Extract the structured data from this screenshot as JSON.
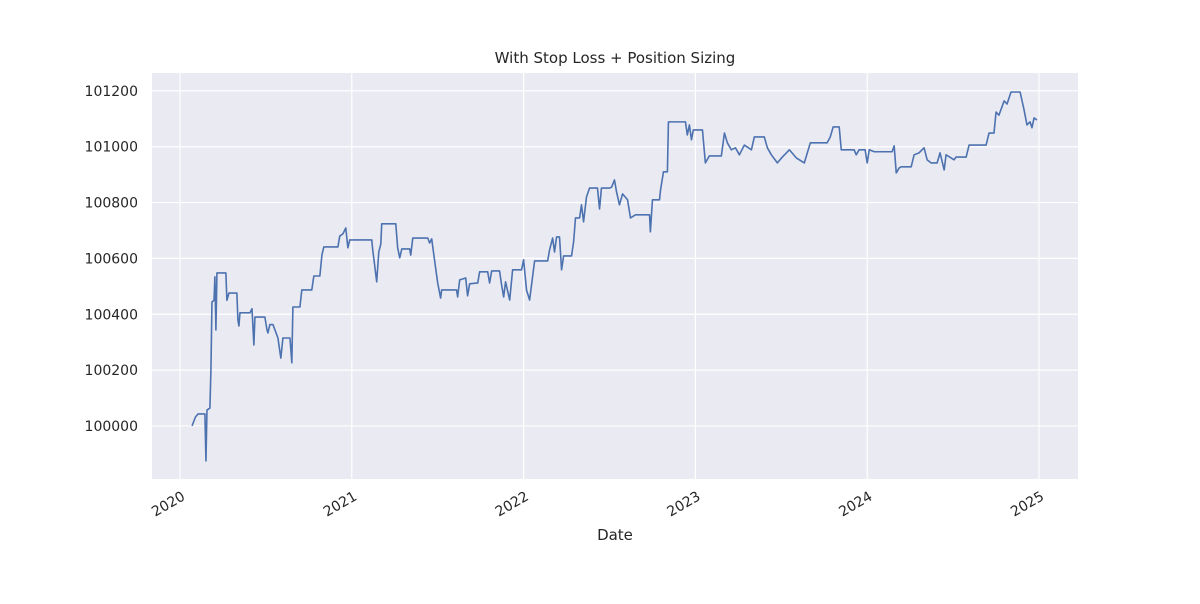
{
  "chart_data": {
    "type": "line",
    "title": "With Stop Loss + Position Sizing",
    "x_label": "Date",
    "xlim": [
      2019.837,
      2025.227
    ],
    "xticks": [
      2020,
      2021,
      2022,
      2023,
      2024,
      2025
    ],
    "ylim": [
      99810,
      101264
    ],
    "yticks": [
      100000,
      100200,
      100400,
      100600,
      100800,
      101000,
      101200
    ],
    "grid": true,
    "series": [
      {
        "color": "#4c72b0",
        "x": [
          2020.07,
          2020.09,
          2020.105,
          2020.145,
          2020.151,
          2020.157,
          2020.174,
          2020.18,
          2020.186,
          2020.198,
          2020.203,
          2020.209,
          2020.215,
          2020.267,
          2020.273,
          2020.285,
          2020.331,
          2020.337,
          2020.343,
          2020.349,
          2020.407,
          2020.419,
          2020.43,
          2020.436,
          2020.494,
          2020.506,
          2020.512,
          2020.523,
          2020.541,
          2020.57,
          2020.587,
          2020.599,
          2020.64,
          2020.651,
          2020.657,
          2020.698,
          2020.709,
          2020.767,
          2020.779,
          2020.814,
          2020.826,
          2020.837,
          2020.919,
          2020.93,
          2020.948,
          2020.965,
          2020.977,
          2020.988,
          2021.116,
          2021.122,
          2021.145,
          2021.157,
          2021.169,
          2021.174,
          2021.256,
          2021.267,
          2021.279,
          2021.291,
          2021.337,
          2021.343,
          2021.355,
          2021.442,
          2021.453,
          2021.465,
          2021.483,
          2021.5,
          2021.517,
          2021.523,
          2021.61,
          2021.616,
          2021.628,
          2021.663,
          2021.674,
          2021.686,
          2021.733,
          2021.744,
          2021.791,
          2021.802,
          2021.814,
          2021.86,
          2021.872,
          2021.884,
          2021.895,
          2021.919,
          2021.936,
          2021.988,
          2022.0,
          2022.017,
          2022.035,
          2022.064,
          2022.14,
          2022.151,
          2022.169,
          2022.18,
          2022.192,
          2022.209,
          2022.221,
          2022.233,
          2022.279,
          2022.291,
          2022.302,
          2022.326,
          2022.337,
          2022.349,
          2022.366,
          2022.384,
          2022.43,
          2022.442,
          2022.453,
          2022.5,
          2022.512,
          2022.529,
          2022.541,
          2022.558,
          2022.576,
          2022.605,
          2022.622,
          2022.651,
          2022.733,
          2022.738,
          2022.75,
          2022.791,
          2022.797,
          2022.814,
          2022.837,
          2022.843,
          2022.942,
          2022.953,
          2022.965,
          2022.977,
          2022.988,
          2023.041,
          2023.058,
          2023.081,
          2023.151,
          2023.169,
          2023.186,
          2023.209,
          2023.233,
          2023.256,
          2023.285,
          2023.326,
          2023.343,
          2023.401,
          2023.419,
          2023.442,
          2023.477,
          2023.506,
          2023.547,
          2023.587,
          2023.605,
          2023.634,
          2023.669,
          2023.767,
          2023.785,
          2023.802,
          2023.837,
          2023.849,
          2023.924,
          2023.936,
          2023.953,
          2023.988,
          2024.0,
          2024.012,
          2024.041,
          2024.145,
          2024.157,
          2024.169,
          2024.186,
          2024.198,
          2024.256,
          2024.273,
          2024.302,
          2024.331,
          2024.349,
          2024.372,
          2024.407,
          2024.424,
          2024.448,
          2024.459,
          2024.506,
          2024.517,
          2024.576,
          2024.593,
          2024.692,
          2024.709,
          2024.738,
          2024.75,
          2024.767,
          2024.797,
          2024.814,
          2024.837,
          2024.89,
          2024.913,
          2024.93,
          2024.948,
          2024.959,
          2024.971,
          2024.988
        ],
        "values": [
          100000,
          100032,
          100043,
          100043,
          99875,
          100057,
          100064,
          100200,
          100444,
          100450,
          100534,
          100344,
          100548,
          100548,
          100450,
          100476,
          100476,
          100380,
          100358,
          100405,
          100405,
          100420,
          100290,
          100390,
          100390,
          100345,
          100333,
          100363,
          100363,
          100315,
          100243,
          100315,
          100315,
          100226,
          100426,
          100426,
          100487,
          100487,
          100537,
          100537,
          100612,
          100641,
          100641,
          100680,
          100688,
          100709,
          100638,
          100666,
          100666,
          100630,
          100516,
          100623,
          100652,
          100724,
          100724,
          100638,
          100602,
          100634,
          100634,
          100612,
          100673,
          100673,
          100655,
          100670,
          100588,
          100512,
          100458,
          100487,
          100487,
          100462,
          100523,
          100530,
          100466,
          100509,
          100512,
          100552,
          100552,
          100512,
          100555,
          100555,
          100505,
          100462,
          100516,
          100451,
          100559,
          100559,
          100595,
          100487,
          100451,
          100591,
          100591,
          100630,
          100673,
          100623,
          100677,
          100677,
          100559,
          100609,
          100609,
          100659,
          100745,
          100745,
          100792,
          100731,
          100820,
          100852,
          100852,
          100777,
          100852,
          100852,
          100855,
          100881,
          100838,
          100792,
          100831,
          100810,
          100745,
          100756,
          100756,
          100695,
          100810,
          100810,
          100845,
          100910,
          100910,
          101089,
          101089,
          101042,
          101078,
          101025,
          101060,
          101060,
          100942,
          100967,
          100967,
          101049,
          101014,
          100989,
          100996,
          100971,
          101006,
          100989,
          101035,
          101035,
          100996,
          100971,
          100942,
          100963,
          100989,
          100960,
          100953,
          100942,
          101014,
          101014,
          101035,
          101071,
          101071,
          100989,
          100989,
          100971,
          100989,
          100989,
          100942,
          100989,
          100982,
          100982,
          101003,
          100906,
          100924,
          100928,
          100928,
          100971,
          100978,
          100996,
          100953,
          100942,
          100942,
          100978,
          100917,
          100971,
          100953,
          100963,
          100963,
          101006,
          101006,
          101049,
          101049,
          101124,
          101113,
          101164,
          101153,
          101196,
          101196,
          101132,
          101078,
          101089,
          101068,
          101103,
          101096
        ]
      }
    ]
  }
}
